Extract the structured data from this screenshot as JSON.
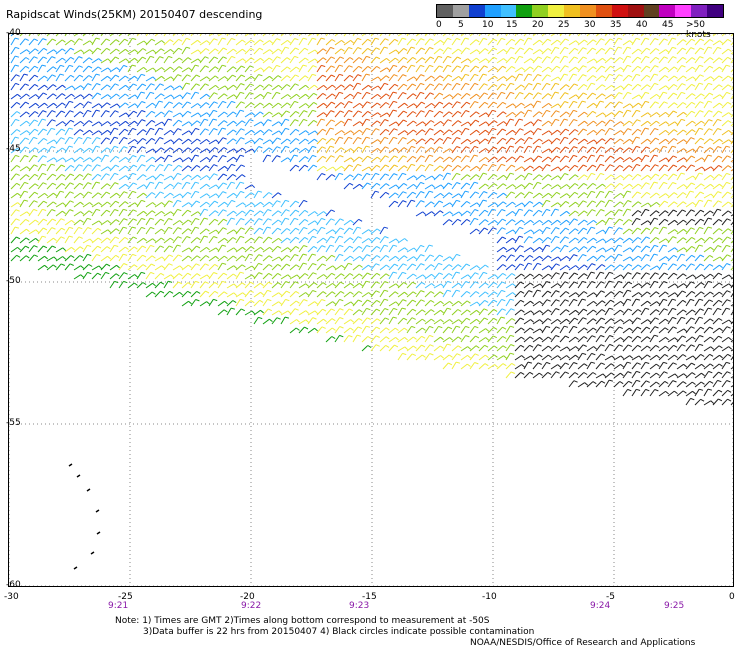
{
  "title": "Rapidscat Winds(25KM) 20150407 descending",
  "colorbar": {
    "labels": [
      "0",
      "5",
      "10",
      "15",
      "20",
      "25",
      "30",
      "35",
      "40",
      "45",
      ">50 knots"
    ],
    "colors": [
      "#606060",
      "#a0a0a0",
      "#1040d0",
      "#20a0ff",
      "#40c0ff",
      "#10a010",
      "#90d020",
      "#f0f040",
      "#f0c020",
      "#f09020",
      "#e05010",
      "#d01010",
      "#a01010",
      "#604020",
      "#c000c0",
      "#ff40ff",
      "#8020c0",
      "#400080"
    ]
  },
  "map": {
    "y_labels": [
      "-40",
      "-45",
      "-50",
      "-55",
      "-60"
    ],
    "x_labels": [
      "-30",
      "-25",
      "-20",
      "-15",
      "-10",
      "-5",
      "0"
    ],
    "time_labels": [
      "9:21",
      "9:22",
      "9:23",
      "9:24",
      "9:25"
    ],
    "lat_range": [
      -60,
      -40
    ],
    "lon_range": [
      -30,
      0
    ]
  },
  "notes": {
    "line1": "Note: 1) Times are GMT  2)Times along bottom correspond to measurement at -50S",
    "line2": "3)Data buffer is 22 hrs from 20150407  4) Black circles indicate possible contamination",
    "line3": "NOAA/NESDIS/Office of Research and Applications"
  }
}
